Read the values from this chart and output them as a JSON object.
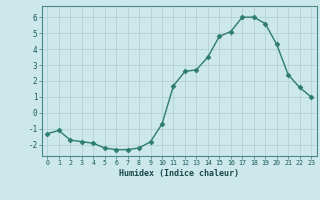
{
  "x": [
    0,
    1,
    2,
    3,
    4,
    5,
    6,
    7,
    8,
    9,
    10,
    11,
    12,
    13,
    14,
    15,
    16,
    17,
    18,
    19,
    20,
    21,
    22,
    23
  ],
  "y": [
    -1.3,
    -1.1,
    -1.7,
    -1.8,
    -1.9,
    -2.2,
    -2.3,
    -2.3,
    -2.2,
    -1.8,
    -0.7,
    1.7,
    2.6,
    2.7,
    3.5,
    4.8,
    5.1,
    6.0,
    6.0,
    5.6,
    4.3,
    2.4,
    1.6,
    1.0
  ],
  "line_color": "#2d7d6e",
  "marker": "D",
  "marker_size": 2.5,
  "bg_color": "#cce8ea",
  "grid_color": "#b8d4d8",
  "xlabel": "Humidex (Indice chaleur)",
  "ylim": [
    -2.7,
    6.7
  ],
  "xlim": [
    -0.5,
    23.5
  ],
  "yticks": [
    -2,
    -1,
    0,
    1,
    2,
    3,
    4,
    5,
    6
  ],
  "xticks": [
    0,
    1,
    2,
    3,
    4,
    5,
    6,
    7,
    8,
    9,
    10,
    11,
    12,
    13,
    14,
    15,
    16,
    17,
    18,
    19,
    20,
    21,
    22,
    23
  ]
}
